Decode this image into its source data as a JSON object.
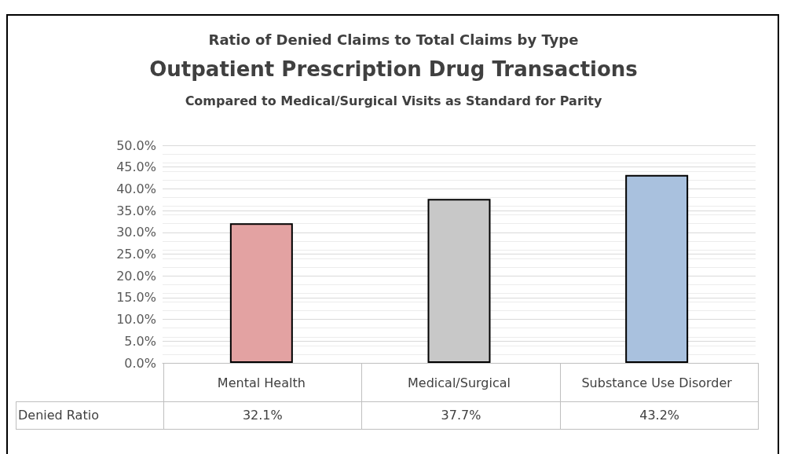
{
  "chart_data": {
    "type": "bar",
    "title": "Ratio of Denied Claims to Total Claims by Type",
    "subtitle": "Outpatient Prescription Drug Transactions",
    "annotations": [
      "Compared to Medical/Surgical Visits as Standard for Parity"
    ],
    "categories": [
      "Mental Health",
      "Medical/Surgical",
      "Substance Use Disorder"
    ],
    "series": [
      {
        "name": "Denied Ratio",
        "values": [
          32.1,
          37.7,
          43.2
        ],
        "colors": [
          "#e3a2a2",
          "#c8c8c8",
          "#a9c1de"
        ],
        "value_labels": [
          "32.1%",
          "37.7%",
          "43.2%"
        ]
      }
    ],
    "ylim": [
      0,
      50
    ],
    "yticks": [
      {
        "value": 0,
        "label": "0.0%"
      },
      {
        "value": 5,
        "label": "5.0%"
      },
      {
        "value": 10,
        "label": "10.0%"
      },
      {
        "value": 15,
        "label": "15.0%"
      },
      {
        "value": 20,
        "label": "20.0%"
      },
      {
        "value": 25,
        "label": "25.0%"
      },
      {
        "value": 30,
        "label": "30.0%"
      },
      {
        "value": 35,
        "label": "35.0%"
      },
      {
        "value": 40,
        "label": "40.0%"
      },
      {
        "value": 45,
        "label": "45.0%"
      },
      {
        "value": 50,
        "label": "50.0%"
      }
    ],
    "grid": "y",
    "legend": false
  }
}
